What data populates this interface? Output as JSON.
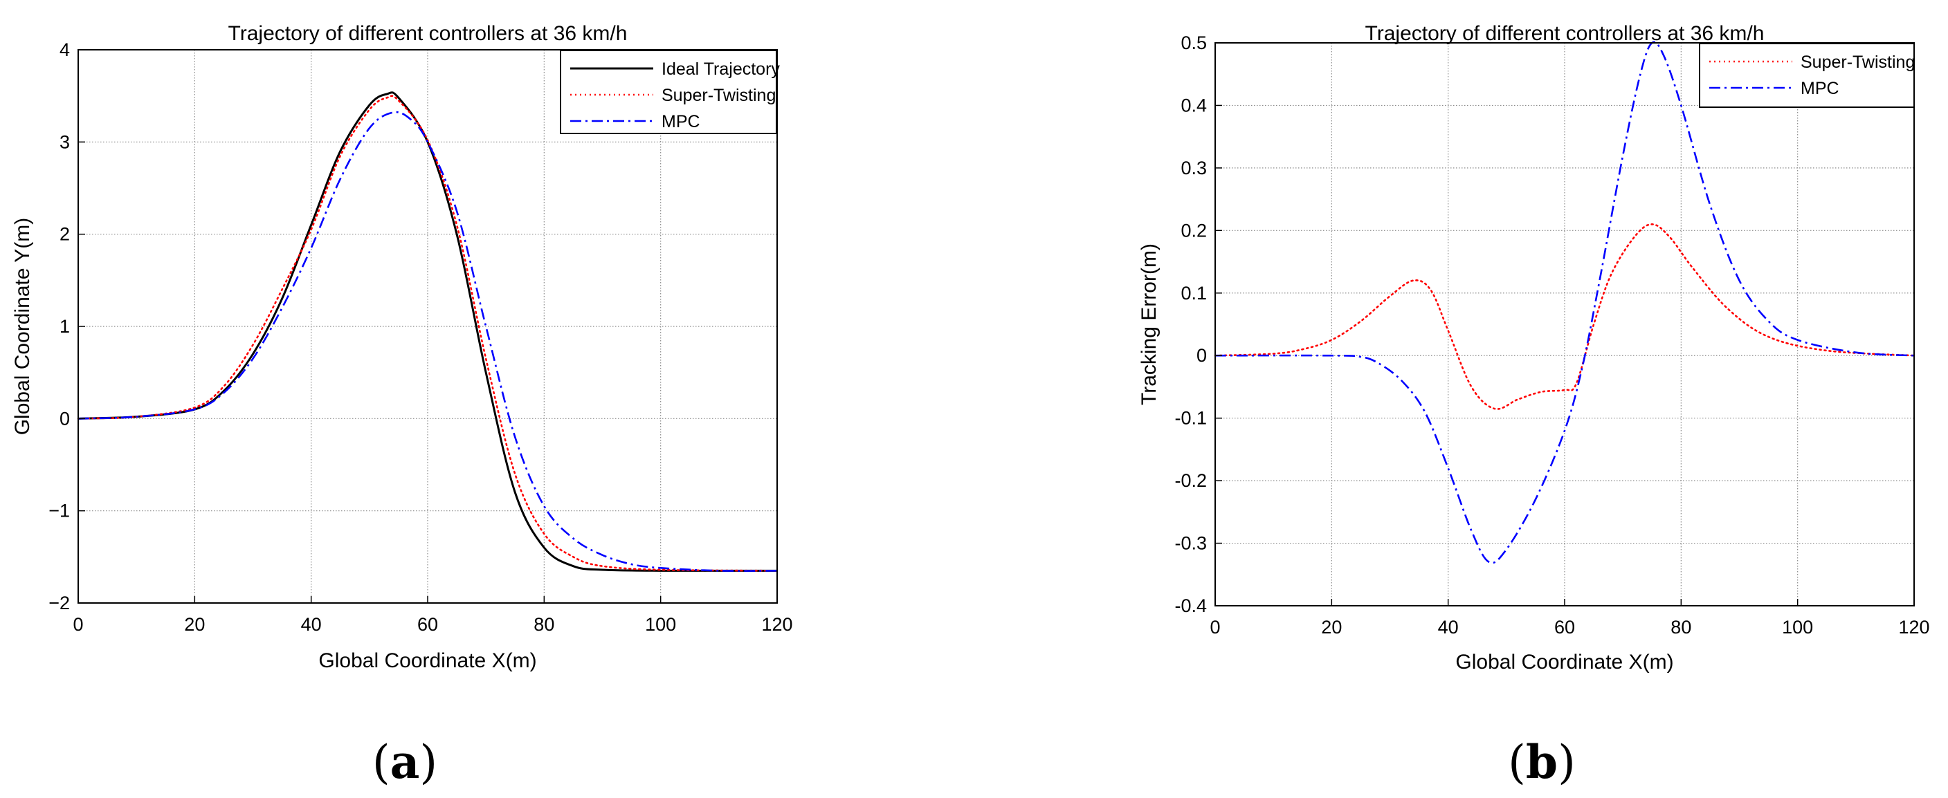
{
  "panels": [
    {
      "caption": "(a)",
      "caption_letter": "a",
      "chart_data": {
        "type": "line",
        "title": "Trajectory of different controllers at 36 km/h",
        "xlabel": "Global Coordinate X(m)",
        "ylabel": "Global Coordinate Y(m)",
        "xlim": [
          0,
          120
        ],
        "ylim": [
          -2,
          4
        ],
        "xticks": [
          0,
          20,
          40,
          60,
          80,
          100,
          120
        ],
        "yticks": [
          -2,
          -1,
          0,
          1,
          2,
          3,
          4
        ],
        "xtick_labels": [
          "0",
          "20",
          "40",
          "60",
          "80",
          "100",
          "120"
        ],
        "ytick_labels": [
          "−2",
          "−1",
          "0",
          "1",
          "2",
          "3",
          "4"
        ],
        "grid": true,
        "legend_position": "top-right",
        "series": [
          {
            "name": "Ideal Trajectory",
            "color": "#000000",
            "style": "solid",
            "points": [
              [
                0,
                0
              ],
              [
                10,
                0.02
              ],
              [
                20,
                0.1
              ],
              [
                25,
                0.3
              ],
              [
                30,
                0.7
              ],
              [
                35,
                1.3
              ],
              [
                40,
                2.1
              ],
              [
                45,
                2.9
              ],
              [
                50,
                3.4
              ],
              [
                53,
                3.52
              ],
              [
                55,
                3.48
              ],
              [
                60,
                3.0
              ],
              [
                65,
                2.0
              ],
              [
                70,
                0.5
              ],
              [
                75,
                -0.8
              ],
              [
                80,
                -1.4
              ],
              [
                85,
                -1.6
              ],
              [
                90,
                -1.64
              ],
              [
                100,
                -1.65
              ],
              [
                120,
                -1.65
              ]
            ]
          },
          {
            "name": "Super-Twisting",
            "color": "#ff0000",
            "style": "dotted",
            "points": [
              [
                0,
                0
              ],
              [
                10,
                0.02
              ],
              [
                20,
                0.12
              ],
              [
                25,
                0.35
              ],
              [
                30,
                0.8
              ],
              [
                35,
                1.4
              ],
              [
                40,
                2.05
              ],
              [
                45,
                2.85
              ],
              [
                50,
                3.35
              ],
              [
                53,
                3.48
              ],
              [
                55,
                3.45
              ],
              [
                60,
                3.02
              ],
              [
                65,
                2.1
              ],
              [
                70,
                0.65
              ],
              [
                75,
                -0.6
              ],
              [
                80,
                -1.25
              ],
              [
                85,
                -1.5
              ],
              [
                90,
                -1.6
              ],
              [
                100,
                -1.64
              ],
              [
                120,
                -1.65
              ]
            ]
          },
          {
            "name": "MPC",
            "color": "#0000ff",
            "style": "dashdot",
            "points": [
              [
                0,
                0
              ],
              [
                10,
                0.02
              ],
              [
                20,
                0.1
              ],
              [
                25,
                0.28
              ],
              [
                30,
                0.65
              ],
              [
                35,
                1.2
              ],
              [
                40,
                1.85
              ],
              [
                45,
                2.6
              ],
              [
                50,
                3.15
              ],
              [
                54,
                3.32
              ],
              [
                57,
                3.25
              ],
              [
                60,
                3.0
              ],
              [
                65,
                2.25
              ],
              [
                70,
                1.0
              ],
              [
                75,
                -0.2
              ],
              [
                80,
                -0.95
              ],
              [
                85,
                -1.3
              ],
              [
                90,
                -1.48
              ],
              [
                95,
                -1.58
              ],
              [
                100,
                -1.62
              ],
              [
                110,
                -1.65
              ],
              [
                120,
                -1.65
              ]
            ]
          }
        ]
      }
    },
    {
      "caption": "(b)",
      "caption_letter": "b",
      "chart_data": {
        "type": "line",
        "title": "Trajectory of different controllers at 36 km/h",
        "xlabel": "Global Coordinate X(m)",
        "ylabel": "Tracking Error(m)",
        "xlim": [
          0,
          120
        ],
        "ylim": [
          -0.4,
          0.5
        ],
        "xticks": [
          0,
          20,
          40,
          60,
          80,
          100,
          120
        ],
        "yticks": [
          -0.4,
          -0.3,
          -0.2,
          -0.1,
          0,
          0.1,
          0.2,
          0.3,
          0.4,
          0.5
        ],
        "xtick_labels": [
          "0",
          "20",
          "40",
          "60",
          "80",
          "100",
          "120"
        ],
        "ytick_labels": [
          "-0.4",
          "-0.3",
          "-0.2",
          "-0.1",
          "0",
          "0.1",
          "0.2",
          "0.3",
          "0.4",
          "0.5"
        ],
        "grid": true,
        "legend_position": "top-right",
        "series": [
          {
            "name": "Super-Twisting",
            "color": "#ff0000",
            "style": "dotted",
            "points": [
              [
                0,
                0
              ],
              [
                10,
                0.003
              ],
              [
                15,
                0.01
              ],
              [
                20,
                0.025
              ],
              [
                25,
                0.055
              ],
              [
                30,
                0.095
              ],
              [
                34,
                0.12
              ],
              [
                37,
                0.105
              ],
              [
                40,
                0.04
              ],
              [
                44,
                -0.05
              ],
              [
                48,
                -0.085
              ],
              [
                52,
                -0.07
              ],
              [
                56,
                -0.058
              ],
              [
                60,
                -0.055
              ],
              [
                62,
                -0.045
              ],
              [
                65,
                0.05
              ],
              [
                68,
                0.13
              ],
              [
                72,
                0.19
              ],
              [
                75,
                0.21
              ],
              [
                78,
                0.19
              ],
              [
                82,
                0.14
              ],
              [
                88,
                0.075
              ],
              [
                95,
                0.03
              ],
              [
                105,
                0.008
              ],
              [
                120,
                0
              ]
            ]
          },
          {
            "name": "MPC",
            "color": "#0000ff",
            "style": "dashdot",
            "points": [
              [
                0,
                0
              ],
              [
                20,
                0
              ],
              [
                25,
                -0.002
              ],
              [
                28,
                -0.012
              ],
              [
                32,
                -0.04
              ],
              [
                36,
                -0.09
              ],
              [
                40,
                -0.18
              ],
              [
                44,
                -0.28
              ],
              [
                47,
                -0.33
              ],
              [
                50,
                -0.31
              ],
              [
                55,
                -0.23
              ],
              [
                60,
                -0.12
              ],
              [
                63,
                -0.02
              ],
              [
                66,
                0.12
              ],
              [
                70,
                0.32
              ],
              [
                73,
                0.45
              ],
              [
                75,
                0.5
              ],
              [
                77,
                0.48
              ],
              [
                80,
                0.4
              ],
              [
                85,
                0.24
              ],
              [
                90,
                0.12
              ],
              [
                95,
                0.055
              ],
              [
                100,
                0.025
              ],
              [
                110,
                0.005
              ],
              [
                120,
                0
              ]
            ]
          }
        ]
      }
    }
  ]
}
